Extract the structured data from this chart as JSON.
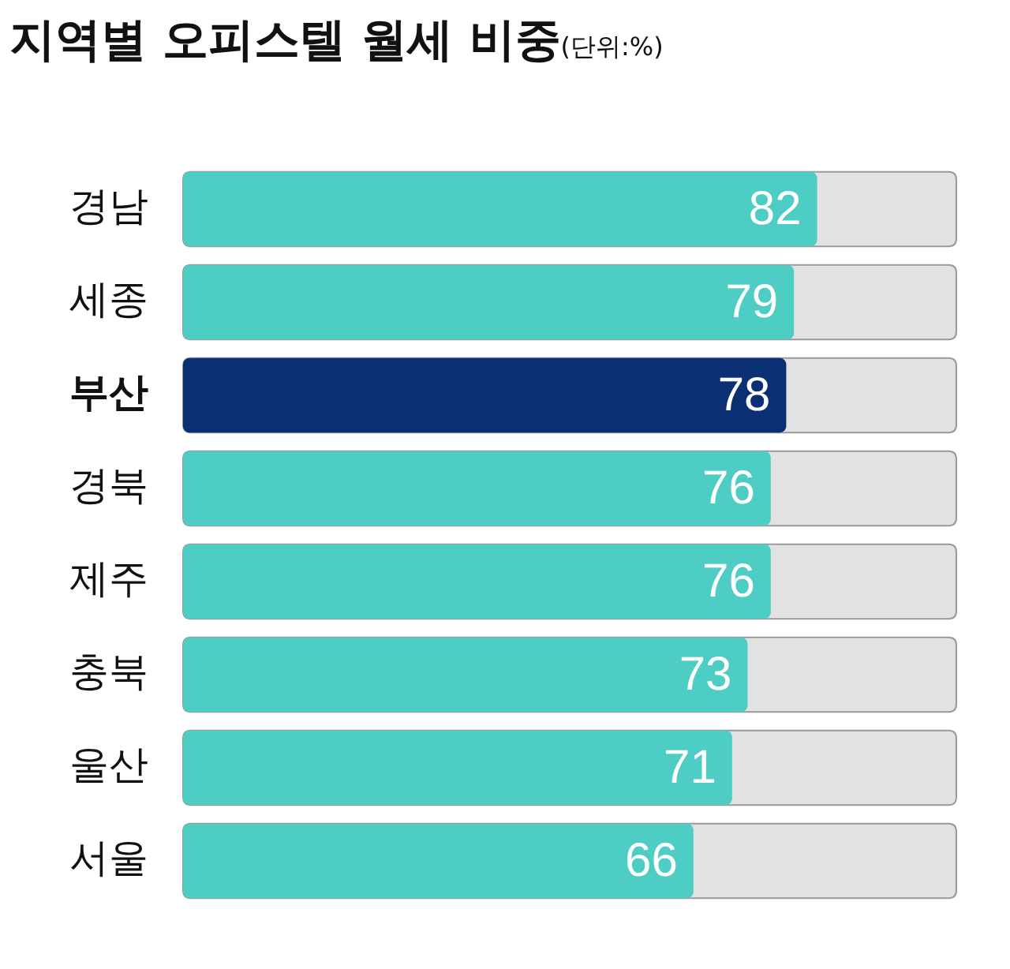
{
  "chart_data": {
    "type": "bar",
    "orientation": "horizontal",
    "title": "지역별 오피스텔 월세 비중",
    "subtitle": "(단위:%)",
    "categories": [
      "경남",
      "세종",
      "부산",
      "경북",
      "제주",
      "충북",
      "울산",
      "서울"
    ],
    "values": [
      82,
      79,
      78,
      76,
      76,
      73,
      71,
      66
    ],
    "colors": [
      "#4ecdc4",
      "#4ecdc4",
      "#0b2f73",
      "#4ecdc4",
      "#4ecdc4",
      "#4ecdc4",
      "#4ecdc4",
      "#4ecdc4"
    ],
    "xlim": [
      0,
      100
    ],
    "tick_labels": "y",
    "data_labels": true,
    "grid": false,
    "legend": false
  }
}
